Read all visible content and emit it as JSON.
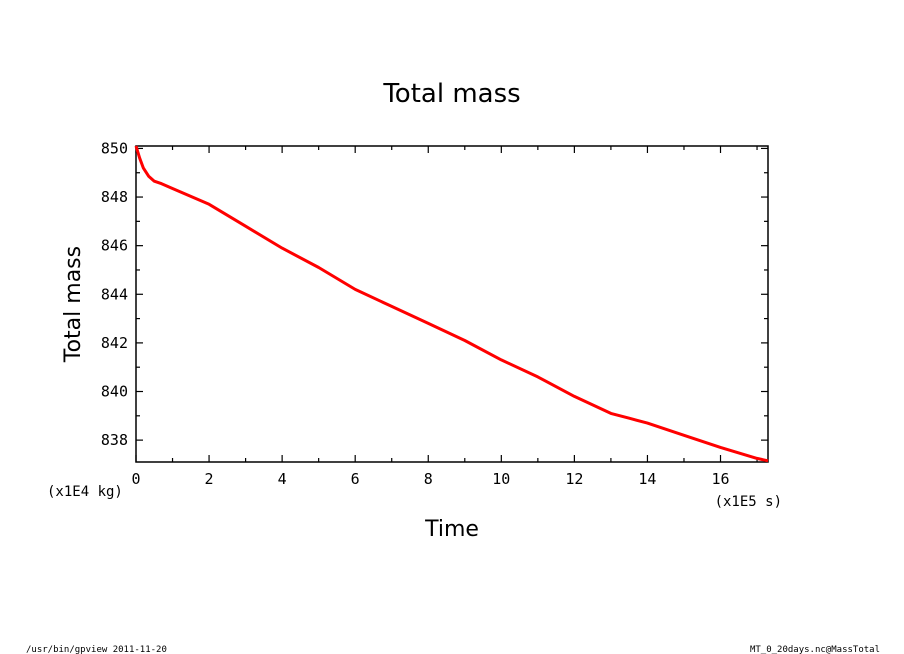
{
  "chart_data": {
    "type": "line",
    "title": "Total mass",
    "xlabel": "Time",
    "ylabel": "Total mass",
    "x_unit": "(x1E5 s)",
    "y_unit": "(x1E4 kg)",
    "xlim": [
      0,
      17.3
    ],
    "ylim": [
      837.1,
      850.1
    ],
    "x_ticks": [
      0,
      2,
      4,
      6,
      8,
      10,
      12,
      14,
      16
    ],
    "y_ticks": [
      838,
      840,
      842,
      844,
      846,
      848,
      850
    ],
    "grid": false,
    "legend": "none",
    "series": [
      {
        "color": "#ff0000",
        "x": [
          0,
          0.1,
          0.2,
          0.35,
          0.5,
          0.7,
          1.0,
          2.0,
          3.0,
          4.0,
          5.0,
          6.0,
          7.0,
          8.0,
          9.0,
          10.0,
          11.0,
          12.0,
          13.0,
          13.5,
          14.0,
          15.0,
          16.0,
          17.0,
          17.3
        ],
        "y": [
          850.1,
          849.6,
          849.2,
          848.85,
          848.65,
          848.55,
          848.35,
          847.7,
          846.8,
          845.9,
          845.1,
          844.2,
          843.5,
          842.8,
          842.1,
          841.3,
          840.6,
          839.8,
          839.1,
          838.9,
          838.7,
          838.2,
          837.7,
          837.25,
          837.15
        ]
      }
    ]
  },
  "footer": {
    "left": "/usr/bin/gpview  2011-11-20",
    "right": "MT_0_20days.nc@MassTotal"
  }
}
